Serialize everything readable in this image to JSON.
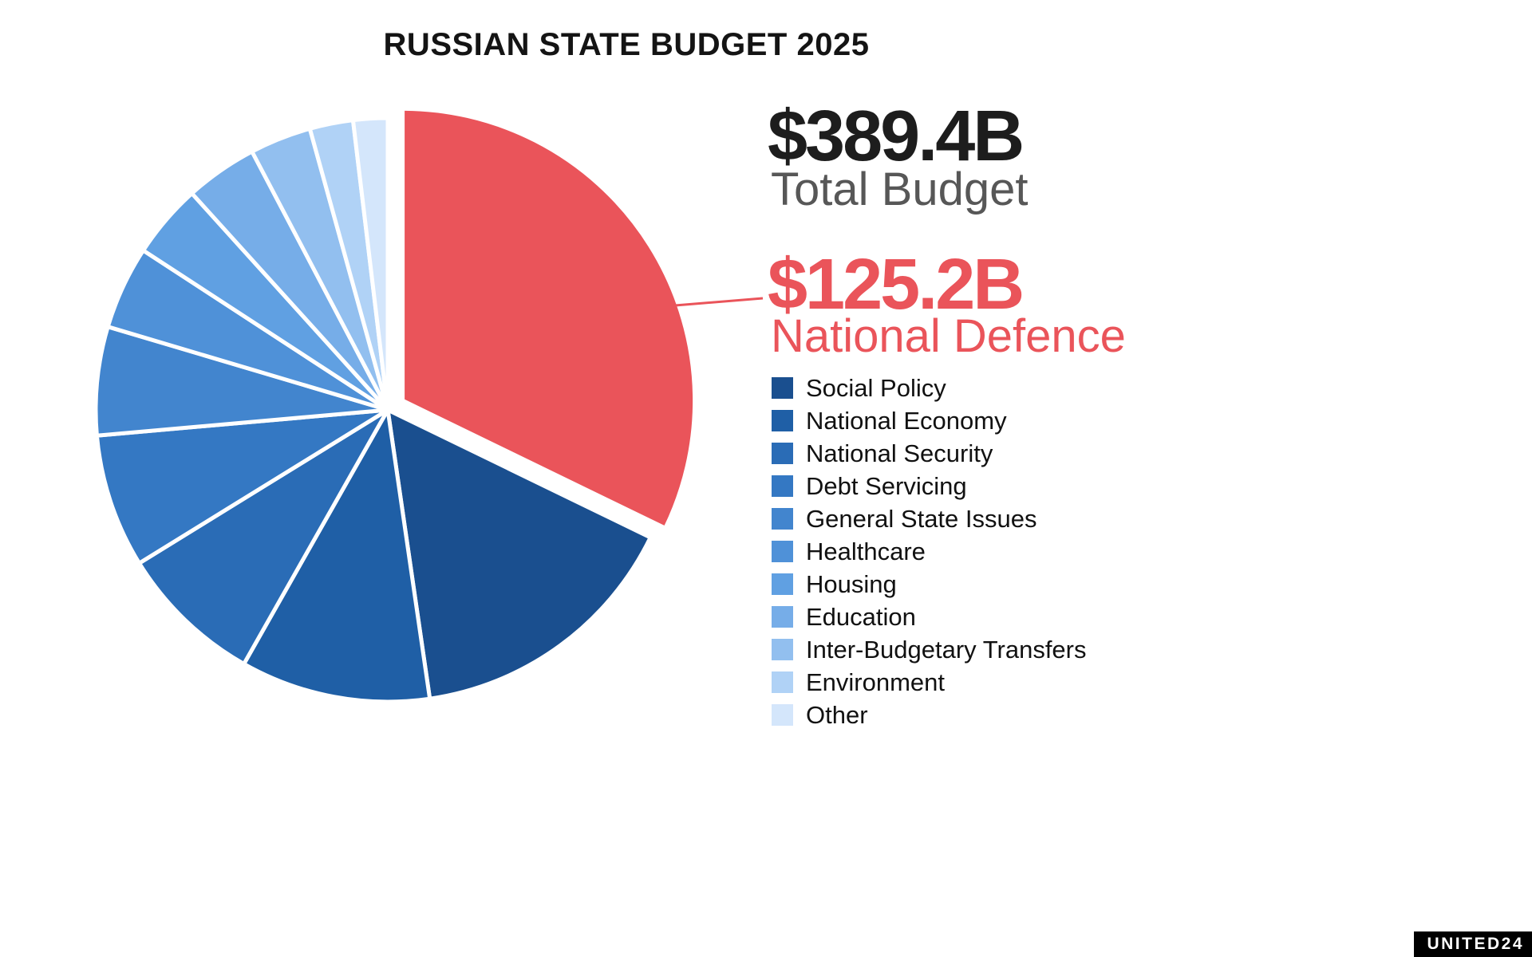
{
  "title": "RUSSIAN STATE BUDGET 2025",
  "summary": {
    "total_value": "$389.4B",
    "total_label": "Total Budget",
    "highlight_value": "$125.2B",
    "highlight_label": "National Defence"
  },
  "branding": {
    "logo_text": "UNITED24"
  },
  "colors": {
    "highlight_red": "#EA545A",
    "text_dark": "#1D1D1D",
    "text_gray": "#575757",
    "background": "#FFFFFF"
  },
  "chart_data": {
    "type": "pie",
    "title": "RUSSIAN STATE BUDGET 2025",
    "units": "USD billions",
    "total": 389.4,
    "start_angle_deg": 0,
    "direction": "clockwise",
    "legend_position": "right",
    "slices": [
      {
        "label": "National Defence",
        "value": 125.2,
        "share_pct": 32.2,
        "color": "#EA545A",
        "exploded": true,
        "in_legend": false
      },
      {
        "label": "Social Policy",
        "value": 60.4,
        "share_pct": 15.5,
        "color": "#1A4F8F",
        "exploded": false,
        "in_legend": true
      },
      {
        "label": "National Economy",
        "value": 40.9,
        "share_pct": 10.5,
        "color": "#1F5FA6",
        "exploded": false,
        "in_legend": true
      },
      {
        "label": "National Security",
        "value": 31.2,
        "share_pct": 8.0,
        "color": "#2A6CB6",
        "exploded": false,
        "in_legend": true
      },
      {
        "label": "Debt Servicing",
        "value": 28.8,
        "share_pct": 7.4,
        "color": "#3478C3",
        "exploded": false,
        "in_legend": true
      },
      {
        "label": "General State Issues",
        "value": 23.4,
        "share_pct": 6.0,
        "color": "#4285CE",
        "exploded": false,
        "in_legend": true
      },
      {
        "label": "Healthcare",
        "value": 17.9,
        "share_pct": 4.6,
        "color": "#4F91D8",
        "exploded": false,
        "in_legend": true
      },
      {
        "label": "Housing",
        "value": 16.0,
        "share_pct": 4.1,
        "color": "#60A0E2",
        "exploded": false,
        "in_legend": true
      },
      {
        "label": "Education",
        "value": 15.6,
        "share_pct": 4.0,
        "color": "#76ADE8",
        "exploded": false,
        "in_legend": true
      },
      {
        "label": "Inter-Budgetary Transfers",
        "value": 13.2,
        "share_pct": 3.4,
        "color": "#92BFEF",
        "exploded": false,
        "in_legend": true
      },
      {
        "label": "Environment",
        "value": 9.3,
        "share_pct": 2.4,
        "color": "#B0D2F6",
        "exploded": false,
        "in_legend": true
      },
      {
        "label": "Other",
        "value": 7.5,
        "share_pct": 1.9,
        "color": "#D4E6FB",
        "exploded": false,
        "in_legend": true
      }
    ]
  }
}
